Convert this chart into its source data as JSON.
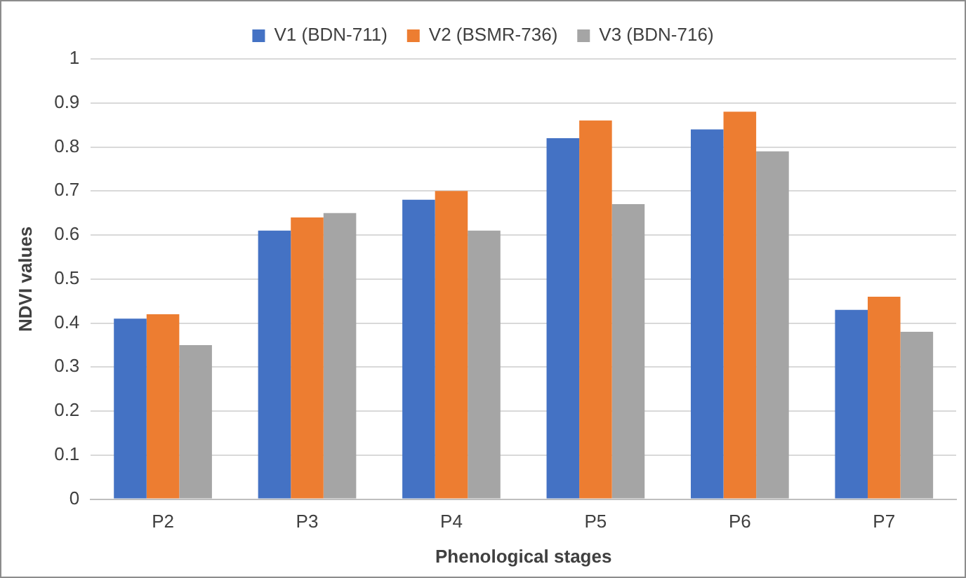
{
  "chart_data": {
    "type": "bar",
    "xlabel": "Phenological stages",
    "ylabel": "NDVI values",
    "categories": [
      "P2",
      "P3",
      "P4",
      "P5",
      "P6",
      "P7"
    ],
    "series": [
      {
        "name": "V1 (BDN-711)",
        "color": "#4472c4",
        "values": [
          0.41,
          0.61,
          0.68,
          0.82,
          0.84,
          0.43
        ]
      },
      {
        "name": "V2 (BSMR-736)",
        "color": "#ed7d31",
        "values": [
          0.42,
          0.64,
          0.7,
          0.86,
          0.88,
          0.46
        ]
      },
      {
        "name": "V3 (BDN-716)",
        "color": "#a5a5a5",
        "values": [
          0.35,
          0.65,
          0.61,
          0.67,
          0.79,
          0.38
        ]
      }
    ],
    "ylim": [
      0,
      1
    ],
    "yticks": [
      0,
      0.1,
      0.2,
      0.3,
      0.4,
      0.5,
      0.6,
      0.7,
      0.8,
      0.9,
      1
    ],
    "grid": "y",
    "legend": "top"
  }
}
